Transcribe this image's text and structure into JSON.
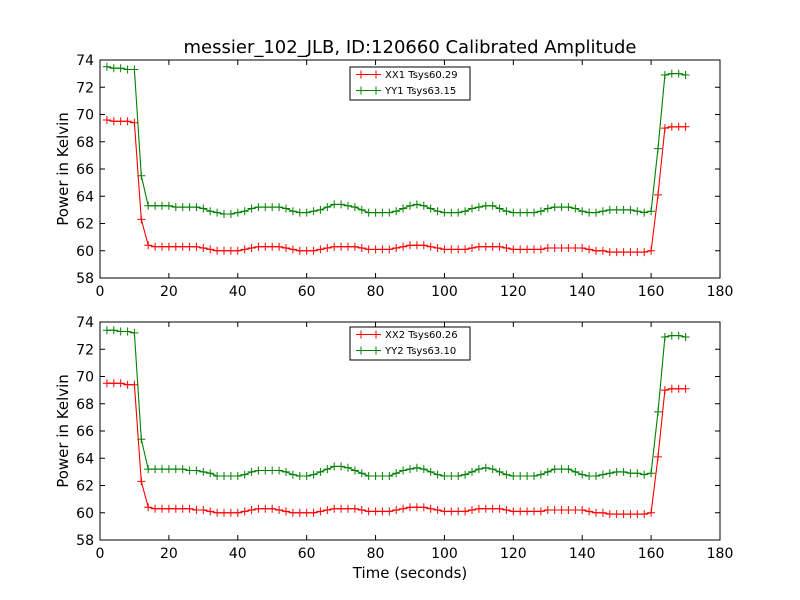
{
  "figure": {
    "title": "messier_102_JLB, ID:120660 Calibrated Amplitude",
    "xlabel": "Time (seconds)"
  },
  "chart_data": [
    {
      "type": "line",
      "ylabel": "Power in Kelvin",
      "xlabel": "",
      "xlim": [
        0,
        180
      ],
      "ylim": [
        58,
        74
      ],
      "xticks": [
        0,
        20,
        40,
        60,
        80,
        100,
        120,
        140,
        160,
        180
      ],
      "yticks": [
        58,
        60,
        62,
        64,
        66,
        68,
        70,
        72,
        74
      ],
      "grid": false,
      "legend_position": "top-center",
      "series": [
        {
          "name": "XX1 Tsys60.29",
          "color": "#ff0000",
          "x": [
            2,
            4,
            6,
            8,
            10,
            12,
            14,
            16,
            18,
            20,
            22,
            24,
            26,
            28,
            30,
            32,
            34,
            36,
            38,
            40,
            42,
            44,
            46,
            48,
            50,
            52,
            54,
            56,
            58,
            60,
            62,
            64,
            66,
            68,
            70,
            72,
            74,
            76,
            78,
            80,
            82,
            84,
            86,
            88,
            90,
            92,
            94,
            96,
            98,
            100,
            102,
            104,
            106,
            108,
            110,
            112,
            114,
            116,
            118,
            120,
            122,
            124,
            126,
            128,
            130,
            132,
            134,
            136,
            138,
            140,
            142,
            144,
            146,
            148,
            150,
            152,
            154,
            156,
            158,
            160,
            162,
            164,
            166,
            168,
            170
          ],
          "y": [
            69.6,
            69.5,
            69.5,
            69.5,
            69.4,
            62.3,
            60.4,
            60.3,
            60.3,
            60.3,
            60.3,
            60.3,
            60.3,
            60.3,
            60.2,
            60.1,
            60.0,
            60.0,
            60.0,
            60.0,
            60.1,
            60.2,
            60.3,
            60.3,
            60.3,
            60.3,
            60.2,
            60.1,
            60.0,
            60.0,
            60.0,
            60.1,
            60.2,
            60.3,
            60.3,
            60.3,
            60.3,
            60.2,
            60.1,
            60.1,
            60.1,
            60.1,
            60.2,
            60.3,
            60.4,
            60.4,
            60.4,
            60.3,
            60.2,
            60.1,
            60.1,
            60.1,
            60.1,
            60.2,
            60.3,
            60.3,
            60.3,
            60.3,
            60.2,
            60.1,
            60.1,
            60.1,
            60.1,
            60.1,
            60.2,
            60.2,
            60.2,
            60.2,
            60.2,
            60.2,
            60.1,
            60.0,
            60.0,
            59.9,
            59.9,
            59.9,
            59.9,
            59.9,
            59.9,
            60.0,
            64.1,
            69.0,
            69.1,
            69.1,
            69.1
          ]
        },
        {
          "name": "YY1 Tsys63.15",
          "color": "#008000",
          "x": [
            2,
            4,
            6,
            8,
            10,
            12,
            14,
            16,
            18,
            20,
            22,
            24,
            26,
            28,
            30,
            32,
            34,
            36,
            38,
            40,
            42,
            44,
            46,
            48,
            50,
            52,
            54,
            56,
            58,
            60,
            62,
            64,
            66,
            68,
            70,
            72,
            74,
            76,
            78,
            80,
            82,
            84,
            86,
            88,
            90,
            92,
            94,
            96,
            98,
            100,
            102,
            104,
            106,
            108,
            110,
            112,
            114,
            116,
            118,
            120,
            122,
            124,
            126,
            128,
            130,
            132,
            134,
            136,
            138,
            140,
            142,
            144,
            146,
            148,
            150,
            152,
            154,
            156,
            158,
            160,
            162,
            164,
            166,
            168,
            170
          ],
          "y": [
            73.5,
            73.4,
            73.4,
            73.3,
            73.3,
            65.5,
            63.3,
            63.3,
            63.3,
            63.3,
            63.2,
            63.2,
            63.2,
            63.2,
            63.1,
            62.9,
            62.8,
            62.7,
            62.7,
            62.8,
            62.9,
            63.1,
            63.2,
            63.2,
            63.2,
            63.2,
            63.1,
            62.9,
            62.8,
            62.8,
            62.9,
            63.0,
            63.2,
            63.4,
            63.4,
            63.3,
            63.2,
            63.0,
            62.8,
            62.8,
            62.8,
            62.8,
            62.9,
            63.1,
            63.3,
            63.4,
            63.3,
            63.1,
            62.9,
            62.8,
            62.8,
            62.8,
            62.9,
            63.1,
            63.2,
            63.3,
            63.3,
            63.1,
            62.9,
            62.8,
            62.8,
            62.8,
            62.8,
            62.9,
            63.1,
            63.2,
            63.2,
            63.2,
            63.1,
            62.9,
            62.8,
            62.8,
            62.9,
            63.0,
            63.0,
            63.0,
            63.0,
            62.9,
            62.8,
            62.9,
            67.5,
            72.9,
            73.0,
            73.0,
            72.9
          ]
        }
      ]
    },
    {
      "type": "line",
      "ylabel": "Power in Kelvin",
      "xlabel": "Time (seconds)",
      "xlim": [
        0,
        180
      ],
      "ylim": [
        58,
        74
      ],
      "xticks": [
        0,
        20,
        40,
        60,
        80,
        100,
        120,
        140,
        160,
        180
      ],
      "yticks": [
        58,
        60,
        62,
        64,
        66,
        68,
        70,
        72,
        74
      ],
      "grid": false,
      "legend_position": "top-center",
      "series": [
        {
          "name": "XX2 Tsys60.26",
          "color": "#ff0000",
          "x": [
            2,
            4,
            6,
            8,
            10,
            12,
            14,
            16,
            18,
            20,
            22,
            24,
            26,
            28,
            30,
            32,
            34,
            36,
            38,
            40,
            42,
            44,
            46,
            48,
            50,
            52,
            54,
            56,
            58,
            60,
            62,
            64,
            66,
            68,
            70,
            72,
            74,
            76,
            78,
            80,
            82,
            84,
            86,
            88,
            90,
            92,
            94,
            96,
            98,
            100,
            102,
            104,
            106,
            108,
            110,
            112,
            114,
            116,
            118,
            120,
            122,
            124,
            126,
            128,
            130,
            132,
            134,
            136,
            138,
            140,
            142,
            144,
            146,
            148,
            150,
            152,
            154,
            156,
            158,
            160,
            162,
            164,
            166,
            168,
            170
          ],
          "y": [
            69.5,
            69.5,
            69.5,
            69.4,
            69.4,
            62.3,
            60.4,
            60.3,
            60.3,
            60.3,
            60.3,
            60.3,
            60.3,
            60.2,
            60.2,
            60.1,
            60.0,
            60.0,
            60.0,
            60.0,
            60.1,
            60.2,
            60.3,
            60.3,
            60.3,
            60.2,
            60.1,
            60.0,
            60.0,
            60.0,
            60.0,
            60.1,
            60.2,
            60.3,
            60.3,
            60.3,
            60.3,
            60.2,
            60.1,
            60.1,
            60.1,
            60.1,
            60.2,
            60.3,
            60.4,
            60.4,
            60.4,
            60.3,
            60.2,
            60.1,
            60.1,
            60.1,
            60.1,
            60.2,
            60.3,
            60.3,
            60.3,
            60.3,
            60.2,
            60.1,
            60.1,
            60.1,
            60.1,
            60.1,
            60.2,
            60.2,
            60.2,
            60.2,
            60.2,
            60.2,
            60.1,
            60.0,
            60.0,
            59.9,
            59.9,
            59.9,
            59.9,
            59.9,
            59.9,
            60.0,
            64.1,
            69.0,
            69.1,
            69.1,
            69.1
          ]
        },
        {
          "name": "YY2 Tsys63.10",
          "color": "#008000",
          "x": [
            2,
            4,
            6,
            8,
            10,
            12,
            14,
            16,
            18,
            20,
            22,
            24,
            26,
            28,
            30,
            32,
            34,
            36,
            38,
            40,
            42,
            44,
            46,
            48,
            50,
            52,
            54,
            56,
            58,
            60,
            62,
            64,
            66,
            68,
            70,
            72,
            74,
            76,
            78,
            80,
            82,
            84,
            86,
            88,
            90,
            92,
            94,
            96,
            98,
            100,
            102,
            104,
            106,
            108,
            110,
            112,
            114,
            116,
            118,
            120,
            122,
            124,
            126,
            128,
            130,
            132,
            134,
            136,
            138,
            140,
            142,
            144,
            146,
            148,
            150,
            152,
            154,
            156,
            158,
            160,
            162,
            164,
            166,
            168,
            170
          ],
          "y": [
            73.4,
            73.4,
            73.3,
            73.3,
            73.2,
            65.4,
            63.2,
            63.2,
            63.2,
            63.2,
            63.2,
            63.2,
            63.1,
            63.1,
            63.0,
            62.9,
            62.7,
            62.7,
            62.7,
            62.7,
            62.8,
            63.0,
            63.1,
            63.1,
            63.1,
            63.1,
            63.0,
            62.8,
            62.7,
            62.7,
            62.8,
            63.0,
            63.2,
            63.4,
            63.4,
            63.3,
            63.1,
            62.9,
            62.7,
            62.7,
            62.7,
            62.7,
            62.9,
            63.1,
            63.2,
            63.3,
            63.2,
            63.0,
            62.8,
            62.7,
            62.7,
            62.7,
            62.8,
            63.0,
            63.2,
            63.3,
            63.2,
            63.0,
            62.8,
            62.7,
            62.7,
            62.7,
            62.7,
            62.8,
            63.0,
            63.2,
            63.2,
            63.2,
            63.0,
            62.8,
            62.7,
            62.7,
            62.8,
            62.9,
            63.0,
            63.0,
            62.9,
            62.9,
            62.8,
            62.9,
            67.4,
            72.9,
            73.0,
            73.0,
            72.9
          ]
        }
      ]
    }
  ]
}
